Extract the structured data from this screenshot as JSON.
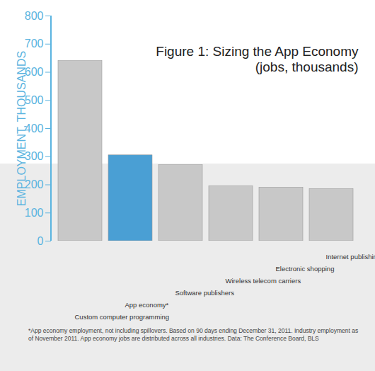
{
  "chart_data": {
    "type": "bar",
    "title": "Figure 1: Sizing the App Economy\n(jobs, thousands)",
    "y_label": "EMPLOYMENT, THOUSANDS",
    "categories": [
      "Custom computer programming",
      "App economy*",
      "Software publishers",
      "Wireless telecom carriers",
      "Electronic shopping",
      "Internet publishing and web search portals"
    ],
    "values": [
      640,
      305,
      270,
      195,
      190,
      185
    ],
    "colors": [
      "#c8c8c8",
      "#4a9fd4",
      "#c8c8c8",
      "#c8c8c8",
      "#c8c8c8",
      "#c8c8c8"
    ],
    "ylim": [
      0,
      800
    ],
    "yticks": [
      0,
      100,
      200,
      300,
      400,
      500,
      600,
      700,
      800
    ],
    "grid": false,
    "caption": "*App economy employment, not including spillovers. Based on 90 days ending December 31, 2011. Industry employment as of November 2011. App economy jobs are distributed across all industries. Data: The Conference Board, BLS"
  }
}
